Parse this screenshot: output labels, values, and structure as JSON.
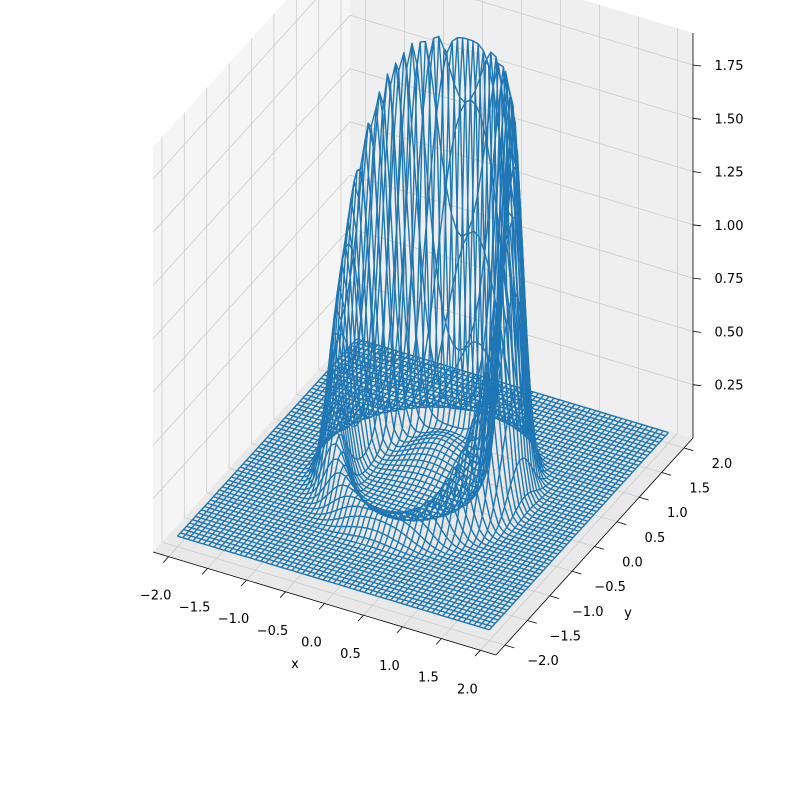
{
  "chart_data": {
    "type": "wireframe3d",
    "title": "",
    "xlabel": "x",
    "ylabel": "y",
    "zlabel": "",
    "xlim": [
      -2.2,
      2.2
    ],
    "ylim": [
      -2.2,
      2.2
    ],
    "zlim": [
      0.0,
      1.9
    ],
    "x_ticks": [
      -2.0,
      -1.5,
      -1.0,
      -0.5,
      0.0,
      0.5,
      1.0,
      1.5,
      2.0
    ],
    "x_tick_labels": [
      "−2.0",
      "−1.5",
      "−1.0",
      "−0.5",
      "0.0",
      "0.5",
      "1.0",
      "1.5",
      "2.0"
    ],
    "y_ticks": [
      -2.0,
      -1.5,
      -1.0,
      -0.5,
      0.0,
      0.5,
      1.0,
      1.5,
      2.0
    ],
    "y_tick_labels": [
      "−2.0",
      "−1.5",
      "−1.0",
      "−0.5",
      "0.0",
      "0.5",
      "1.0",
      "1.5",
      "2.0"
    ],
    "z_ticks": [
      0.25,
      0.5,
      0.75,
      1.0,
      1.25,
      1.5,
      1.75
    ],
    "z_tick_labels": [
      "0.25",
      "0.50",
      "0.75",
      "1.00",
      "1.25",
      "1.50",
      "1.75"
    ],
    "series": [
      {
        "x_range": [
          -2.0,
          2.0
        ],
        "y_range": [
          -2.0,
          2.0
        ],
        "z_peak": 1.83,
        "z_base": 0.05,
        "color": "#1f77b4"
      }
    ],
    "grid": true,
    "pane_color": "#f2f2f2",
    "grid_color": "#cccccc"
  }
}
